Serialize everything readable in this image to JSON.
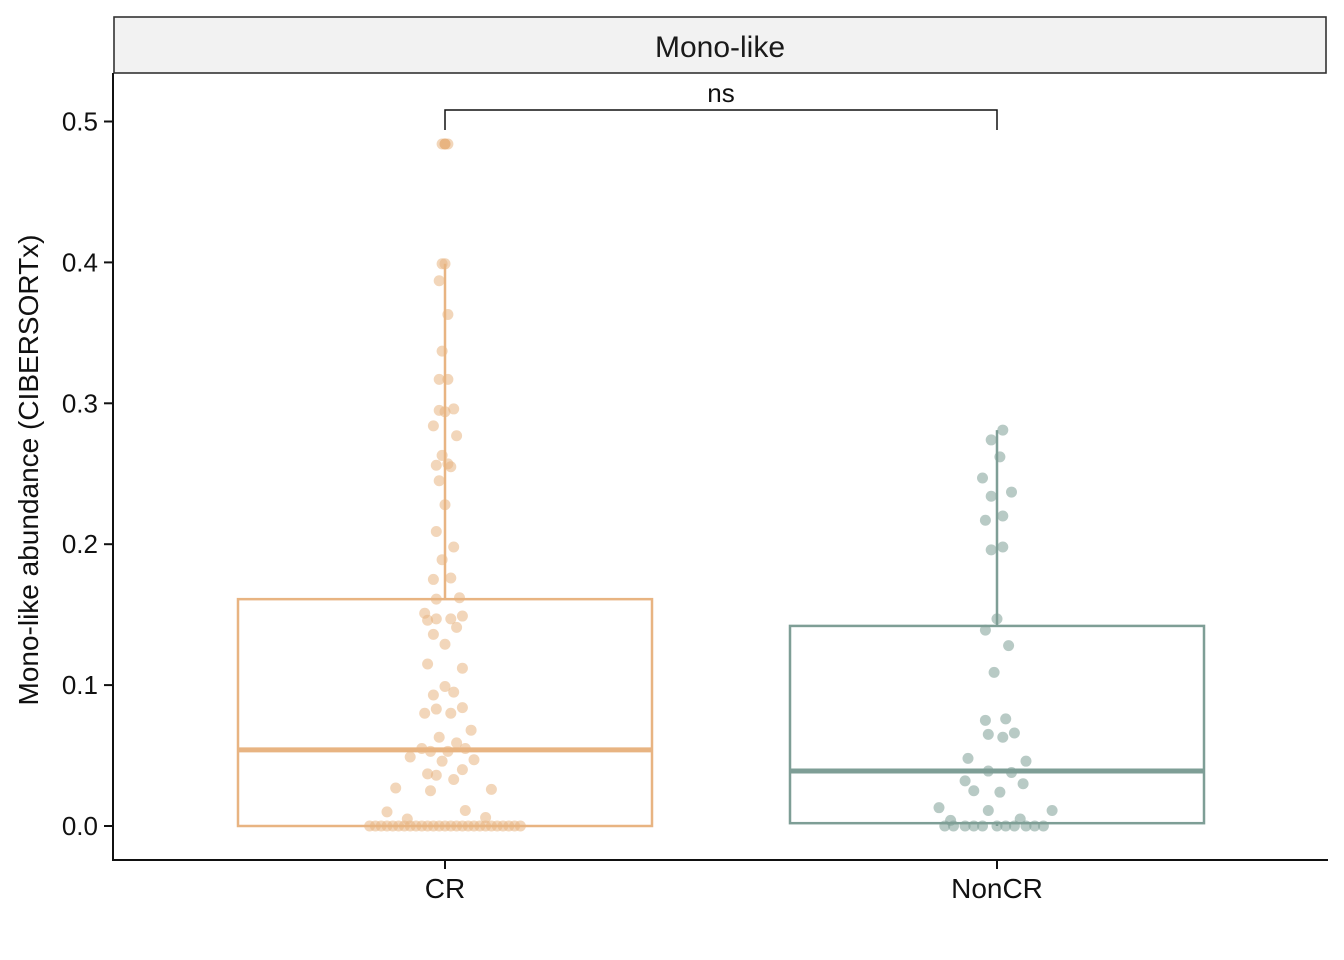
{
  "chart_data": {
    "type": "box",
    "facet_title": "Mono-like",
    "ylabel": "Mono-like abundance (CIBERSORTx)",
    "xlabel": "",
    "ylim": [
      -0.025,
      0.525
    ],
    "yticks": [
      0.0,
      0.1,
      0.2,
      0.3,
      0.4,
      0.5
    ],
    "ytick_labels": [
      "0.0",
      "0.1",
      "0.2",
      "0.3",
      "0.4",
      "0.5"
    ],
    "categories": [
      "CR",
      "NonCR"
    ],
    "grid": false,
    "legend": "none",
    "significance": {
      "label": "ns",
      "groups": [
        "CR",
        "NonCR"
      ]
    },
    "groups": [
      {
        "name": "CR",
        "color": "#E8B482",
        "box": {
          "q1": 0.0,
          "median": 0.054,
          "q3": 0.161,
          "whisker_low": 0.0,
          "whisker_high": 0.399
        },
        "outliers": [
          0.484
        ],
        "points": [
          [
            -0.01,
            0.484
          ],
          [
            0.01,
            0.484
          ],
          [
            -0.01,
            0.399
          ],
          [
            0.0,
            0.399
          ],
          [
            -0.02,
            0.387
          ],
          [
            0.01,
            0.363
          ],
          [
            -0.01,
            0.337
          ],
          [
            -0.02,
            0.317
          ],
          [
            0.01,
            0.317
          ],
          [
            -0.02,
            0.295
          ],
          [
            0.0,
            0.294
          ],
          [
            0.03,
            0.296
          ],
          [
            -0.04,
            0.284
          ],
          [
            0.04,
            0.277
          ],
          [
            -0.01,
            0.263
          ],
          [
            -0.03,
            0.256
          ],
          [
            0.01,
            0.257
          ],
          [
            0.02,
            0.255
          ],
          [
            -0.02,
            0.245
          ],
          [
            0.0,
            0.228
          ],
          [
            -0.03,
            0.209
          ],
          [
            0.03,
            0.198
          ],
          [
            -0.01,
            0.189
          ],
          [
            -0.04,
            0.175
          ],
          [
            0.02,
            0.176
          ],
          [
            -0.03,
            0.161
          ],
          [
            0.05,
            0.162
          ],
          [
            -0.07,
            0.151
          ],
          [
            -0.06,
            0.146
          ],
          [
            -0.03,
            0.147
          ],
          [
            0.02,
            0.147
          ],
          [
            0.06,
            0.149
          ],
          [
            -0.04,
            0.136
          ],
          [
            0.04,
            0.141
          ],
          [
            0.0,
            0.129
          ],
          [
            -0.06,
            0.115
          ],
          [
            0.06,
            0.112
          ],
          [
            -0.04,
            0.093
          ],
          [
            0.0,
            0.099
          ],
          [
            0.03,
            0.095
          ],
          [
            -0.07,
            0.08
          ],
          [
            -0.03,
            0.083
          ],
          [
            0.02,
            0.08
          ],
          [
            0.06,
            0.084
          ],
          [
            0.09,
            0.068
          ],
          [
            -0.02,
            0.063
          ],
          [
            0.04,
            0.059
          ],
          [
            -0.08,
            0.055
          ],
          [
            -0.05,
            0.053
          ],
          [
            0.01,
            0.053
          ],
          [
            0.07,
            0.055
          ],
          [
            -0.12,
            0.049
          ],
          [
            -0.01,
            0.046
          ],
          [
            0.1,
            0.047
          ],
          [
            -0.06,
            0.037
          ],
          [
            -0.03,
            0.036
          ],
          [
            0.06,
            0.04
          ],
          [
            0.03,
            0.033
          ],
          [
            -0.17,
            0.027
          ],
          [
            -0.05,
            0.025
          ],
          [
            0.16,
            0.026
          ],
          [
            -0.2,
            0.01
          ],
          [
            0.07,
            0.011
          ],
          [
            -0.13,
            0.005
          ],
          [
            0.14,
            0.006
          ],
          [
            -0.26,
            0.0
          ],
          [
            -0.24,
            0.0
          ],
          [
            -0.22,
            0.0
          ],
          [
            -0.2,
            0.0
          ],
          [
            -0.18,
            0.0
          ],
          [
            -0.16,
            0.0
          ],
          [
            -0.14,
            0.0
          ],
          [
            -0.12,
            0.0
          ],
          [
            -0.1,
            0.0
          ],
          [
            -0.08,
            0.0
          ],
          [
            -0.06,
            0.0
          ],
          [
            -0.04,
            0.0
          ],
          [
            -0.02,
            0.0
          ],
          [
            0.0,
            0.0
          ],
          [
            0.02,
            0.0
          ],
          [
            0.04,
            0.0
          ],
          [
            0.06,
            0.0
          ],
          [
            0.08,
            0.0
          ],
          [
            0.1,
            0.0
          ],
          [
            0.12,
            0.0
          ],
          [
            0.14,
            0.0
          ],
          [
            0.16,
            0.0
          ],
          [
            0.18,
            0.0
          ],
          [
            0.2,
            0.0
          ],
          [
            0.22,
            0.0
          ],
          [
            0.24,
            0.0
          ],
          [
            0.26,
            0.0
          ]
        ]
      },
      {
        "name": "NonCR",
        "color": "#7E9E96",
        "box": {
          "q1": 0.002,
          "median": 0.039,
          "q3": 0.142,
          "whisker_low": 0.0,
          "whisker_high": 0.281
        },
        "outliers": [],
        "points": [
          [
            0.02,
            0.281
          ],
          [
            -0.02,
            0.274
          ],
          [
            0.01,
            0.262
          ],
          [
            -0.05,
            0.247
          ],
          [
            0.05,
            0.237
          ],
          [
            -0.02,
            0.234
          ],
          [
            0.02,
            0.22
          ],
          [
            -0.04,
            0.217
          ],
          [
            0.02,
            0.198
          ],
          [
            -0.02,
            0.196
          ],
          [
            0.0,
            0.147
          ],
          [
            -0.04,
            0.139
          ],
          [
            0.04,
            0.128
          ],
          [
            -0.01,
            0.109
          ],
          [
            -0.04,
            0.075
          ],
          [
            0.03,
            0.076
          ],
          [
            0.06,
            0.066
          ],
          [
            -0.03,
            0.065
          ],
          [
            0.02,
            0.063
          ],
          [
            -0.1,
            0.048
          ],
          [
            0.1,
            0.046
          ],
          [
            -0.03,
            0.039
          ],
          [
            0.05,
            0.038
          ],
          [
            -0.11,
            0.032
          ],
          [
            0.09,
            0.03
          ],
          [
            -0.08,
            0.025
          ],
          [
            0.01,
            0.024
          ],
          [
            -0.2,
            0.013
          ],
          [
            -0.03,
            0.011
          ],
          [
            0.19,
            0.011
          ],
          [
            -0.16,
            0.004
          ],
          [
            0.08,
            0.005
          ],
          [
            -0.18,
            0.0
          ],
          [
            -0.15,
            0.0
          ],
          [
            -0.11,
            0.0
          ],
          [
            -0.08,
            0.0
          ],
          [
            -0.05,
            0.0
          ],
          [
            0.0,
            0.0
          ],
          [
            0.03,
            0.0
          ],
          [
            0.06,
            0.0
          ],
          [
            0.1,
            0.0
          ],
          [
            0.13,
            0.0
          ],
          [
            0.16,
            0.0
          ]
        ]
      }
    ]
  }
}
